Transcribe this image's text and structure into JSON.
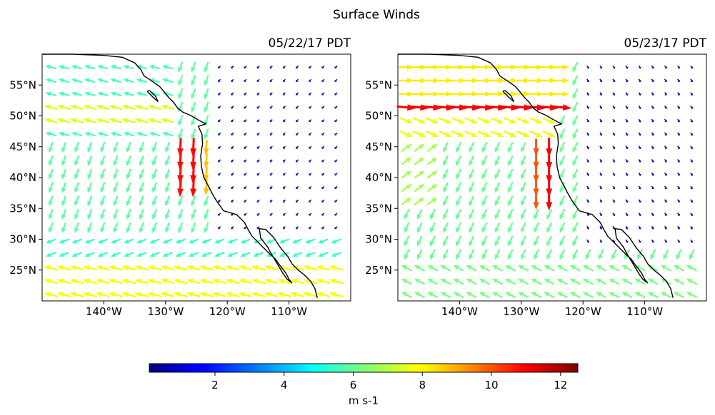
{
  "figure": {
    "title": "Surface Winds"
  },
  "chart_data": [
    {
      "type": "quiver",
      "panel_title": "05/22/17 PDT",
      "x_ticks": [
        "140°W",
        "130°W",
        "120°W",
        "110°W"
      ],
      "x_tick_values": [
        -140,
        -130,
        -120,
        -110
      ],
      "y_ticks": [
        "25°N",
        "30°N",
        "35°N",
        "40°N",
        "45°N",
        "50°N",
        "55°N"
      ],
      "y_tick_values": [
        25,
        30,
        35,
        40,
        45,
        50,
        55
      ],
      "xlim": [
        -150,
        -100
      ],
      "ylim": [
        20,
        60
      ],
      "vectors_description": "Wind arrows on a regular grid colored by speed; strongest (~12 m/s, southward) near 128–125°W, 40–45°N; westward flow ~7–9 m/s near 50°N off the coast; weak flow east of the coast."
    },
    {
      "type": "quiver",
      "panel_title": "05/23/17 PDT",
      "x_ticks": [
        "140°W",
        "130°W",
        "120°W",
        "110°W"
      ],
      "x_tick_values": [
        -140,
        -130,
        -120,
        -110
      ],
      "y_ticks": [
        "25°N",
        "30°N",
        "35°N",
        "40°N",
        "45°N",
        "50°N",
        "55°N"
      ],
      "y_tick_values": [
        25,
        30,
        35,
        40,
        45,
        50,
        55
      ],
      "xlim": [
        -150,
        -100
      ],
      "ylim": [
        20,
        60
      ],
      "vectors_description": "Strong eastward jet ~11–12 m/s along 50–55°N offshore; strong southward flow ~12 m/s near 127–125°W, 40–45°N; weak winds inland."
    }
  ],
  "colorbar": {
    "label": "m s-1",
    "ticks": [
      "2",
      "4",
      "6",
      "8",
      "10",
      "12"
    ],
    "tick_values": [
      2,
      4,
      6,
      8,
      10,
      12
    ],
    "range": [
      0.1,
      12.5
    ],
    "colormap": "jet"
  }
}
